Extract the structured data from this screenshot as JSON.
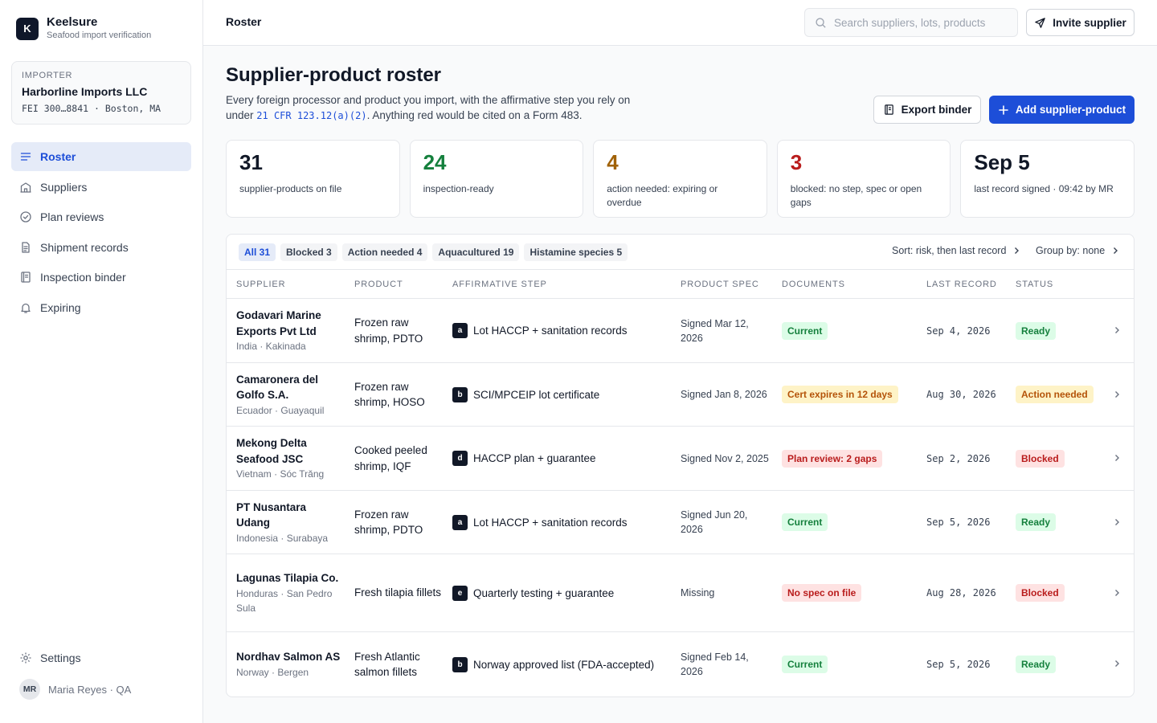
{
  "app": {
    "logo_letter": "K",
    "name": "Keelsure",
    "tagline": "Seafood import verification"
  },
  "importer": {
    "kicker": "IMPORTER",
    "name": "Harborline Imports LLC",
    "meta": "FEI 300…8841 · Boston, MA"
  },
  "nav": [
    {
      "label": "Roster",
      "icon": "list-icon",
      "active": true
    },
    {
      "label": "Suppliers",
      "icon": "building-icon"
    },
    {
      "label": "Plan reviews",
      "icon": "check-circle-icon"
    },
    {
      "label": "Shipment records",
      "icon": "document-icon"
    },
    {
      "label": "Inspection binder",
      "icon": "binder-icon"
    },
    {
      "label": "Expiring",
      "icon": "bell-icon"
    }
  ],
  "settings_label": "Settings",
  "user": {
    "initials": "MR",
    "name": "Maria Reyes · QA"
  },
  "topbar": {
    "title": "Roster",
    "search_placeholder": "Search suppliers, lots, products",
    "invite_label": "Invite supplier"
  },
  "header": {
    "title": "Supplier-product roster",
    "desc_before": "Every foreign processor and product you import, with the affirmative step you rely on under ",
    "desc_code": "21 CFR 123.12(a)(2)",
    "desc_after": ". Anything red would be cited on a Form 483.",
    "export_label": "Export binder",
    "add_label": "Add supplier-product"
  },
  "colors": {
    "accent": "#1d4ed8",
    "ready_text": "#15803d",
    "ready_bg": "#dcfce7",
    "warn_text": "#b45309",
    "warn_bg": "#fef3c7",
    "block_text": "#b91c1c",
    "block_bg": "#fee2e2",
    "stat_green": "#15803d",
    "stat_amber": "#a16207",
    "stat_red": "#b91c1c"
  },
  "stats": [
    {
      "value": "31",
      "label": "supplier-products on file",
      "tone": "neutral"
    },
    {
      "value": "24",
      "label": "inspection-ready",
      "tone": "green"
    },
    {
      "value": "4",
      "label": "action needed: expiring or overdue",
      "tone": "amber"
    },
    {
      "value": "3",
      "label": "blocked: no step, spec or open gaps",
      "tone": "red"
    },
    {
      "value": "Sep 5",
      "label": "last record signed · 09:42 by MR",
      "tone": "neutral"
    }
  ],
  "filters": [
    {
      "label": "All 31",
      "active": true
    },
    {
      "label": "Blocked 3"
    },
    {
      "label": "Action needed 4"
    },
    {
      "label": "Aquacultured 19"
    },
    {
      "label": "Histamine species 5"
    }
  ],
  "sort_label": "Sort: risk, then last record",
  "group_label": "Group by: none",
  "columns": [
    "Supplier",
    "Product",
    "Affirmative step",
    "Product spec",
    "Documents",
    "Last record",
    "Status"
  ],
  "rows": [
    {
      "supplier": "Godavari Marine Exports Pvt Ltd",
      "location": "India · Kakinada",
      "product": "Frozen raw shrimp, PDTO",
      "step_code": "a",
      "step": "Lot HACCP + sanitation records",
      "spec": "Signed Mar 12, 2026",
      "doc": "Current",
      "doc_tone": "ready",
      "last": "Sep 4, 2026",
      "status": "Ready",
      "status_tone": "ready"
    },
    {
      "supplier": "Camaronera del Golfo S.A.",
      "location": "Ecuador · Guayaquil",
      "product": "Frozen raw shrimp, HOSO",
      "step_code": "b",
      "step": "SCI/MPCEIP lot certificate",
      "spec": "Signed Jan 8, 2026",
      "doc": "Cert expires in 12 days",
      "doc_tone": "warn",
      "last": "Aug 30, 2026",
      "status": "Action needed",
      "status_tone": "warn"
    },
    {
      "supplier": "Mekong Delta Seafood JSC",
      "location": "Vietnam · Sóc Trăng",
      "product": "Cooked peeled shrimp, IQF",
      "step_code": "d",
      "step": "HACCP plan + guarantee",
      "spec": "Signed Nov 2, 2025",
      "doc": "Plan review: 2 gaps",
      "doc_tone": "block",
      "last": "Sep 2, 2026",
      "status": "Blocked",
      "status_tone": "block"
    },
    {
      "supplier": "PT Nusantara Udang",
      "location": "Indonesia · Surabaya",
      "product": "Frozen raw shrimp, PDTO",
      "step_code": "a",
      "step": "Lot HACCP + sanitation records",
      "spec": "Signed Jun 20, 2026",
      "doc": "Current",
      "doc_tone": "ready",
      "last": "Sep 5, 2026",
      "status": "Ready",
      "status_tone": "ready"
    },
    {
      "supplier": "Lagunas Tilapia Co.",
      "location": "Honduras · San Pedro Sula",
      "product": "Fresh tilapia fillets",
      "step_code": "e",
      "step": "Quarterly testing + guarantee",
      "spec": "Missing",
      "doc": "No spec on file",
      "doc_tone": "block",
      "last": "Aug 28, 2026",
      "status": "Blocked",
      "status_tone": "block"
    },
    {
      "supplier": "Nordhav Salmon AS",
      "location": "Norway · Bergen",
      "product": "Fresh Atlantic salmon fillets",
      "step_code": "b",
      "step": "Norway approved list (FDA-accepted)",
      "spec": "Signed Feb 14, 2026",
      "doc": "Current",
      "doc_tone": "ready",
      "last": "Sep 5, 2026",
      "status": "Ready",
      "status_tone": "ready"
    }
  ]
}
